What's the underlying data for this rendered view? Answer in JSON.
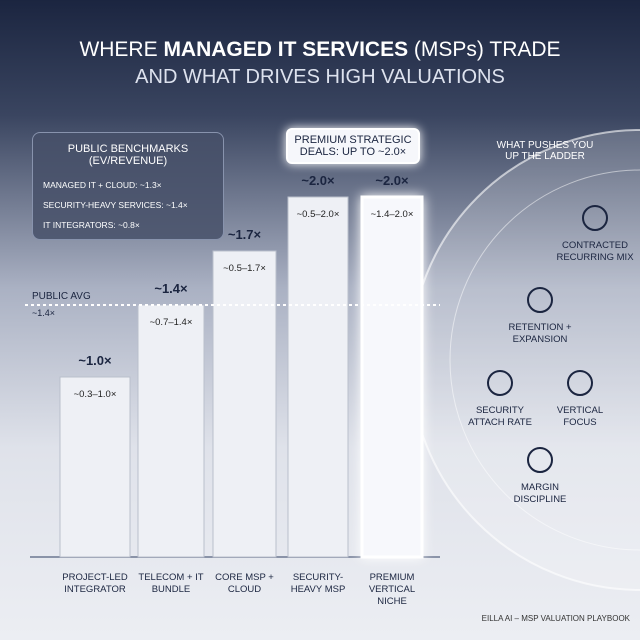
{
  "chart_data": {
    "type": "bar",
    "title": {
      "prefix": "WHERE ",
      "bold": "MANAGED IT SERVICES",
      "suffix": " (MSPs) TRADE",
      "line2": "AND WHAT DRIVES HIGH VALUATIONS"
    },
    "categories": [
      "PROJECT-LED INTEGRATOR",
      "TELECOM + IT BUNDLE",
      "CORE MSP + CLOUD",
      "SECURITY-HEAVY MSP",
      "PREMIUM VERTICAL NICHE"
    ],
    "values": [
      1.0,
      1.4,
      1.7,
      2.0,
      2.0
    ],
    "value_labels": [
      "~1.0×",
      "~1.4×",
      "~1.7×",
      "~2.0×",
      "~2.0×"
    ],
    "range_labels": [
      "~0.3–1.0×",
      "~0.7–1.4×",
      "~0.5–1.7×",
      "~0.5–2.0×",
      "~1.4–2.0×"
    ],
    "ylim": [
      0,
      2
    ],
    "color": "#eef0f5",
    "highlight_color": "#f7f8fc",
    "reference": {
      "label": "PUBLIC AVG",
      "value": 1.4,
      "value_label": "~1.4×"
    },
    "benchmarks": {
      "heading": "PUBLIC BENCHMARKS (EV/REVENUE)",
      "items": [
        "MANAGED IT + CLOUD: ~1.3×",
        "SECURITY-HEAVY SERVICES: ~1.4×",
        "IT INTEGRATORS: ~0.8×"
      ]
    },
    "callout": "PREMIUM STRATEGIC DEALS: UP TO ~2.0×",
    "drivers": {
      "heading": "WHAT PUSHES YOU UP THE LADDER",
      "items": [
        "CONTRACTED RECURRING MIX",
        "RETENTION + EXPANSION",
        "SECURITY ATTACH RATE",
        "VERTICAL FOCUS",
        "MARGIN DISCIPLINE"
      ]
    },
    "footer": "EILLA AI – MSP VALUATION PLAYBOOK"
  }
}
